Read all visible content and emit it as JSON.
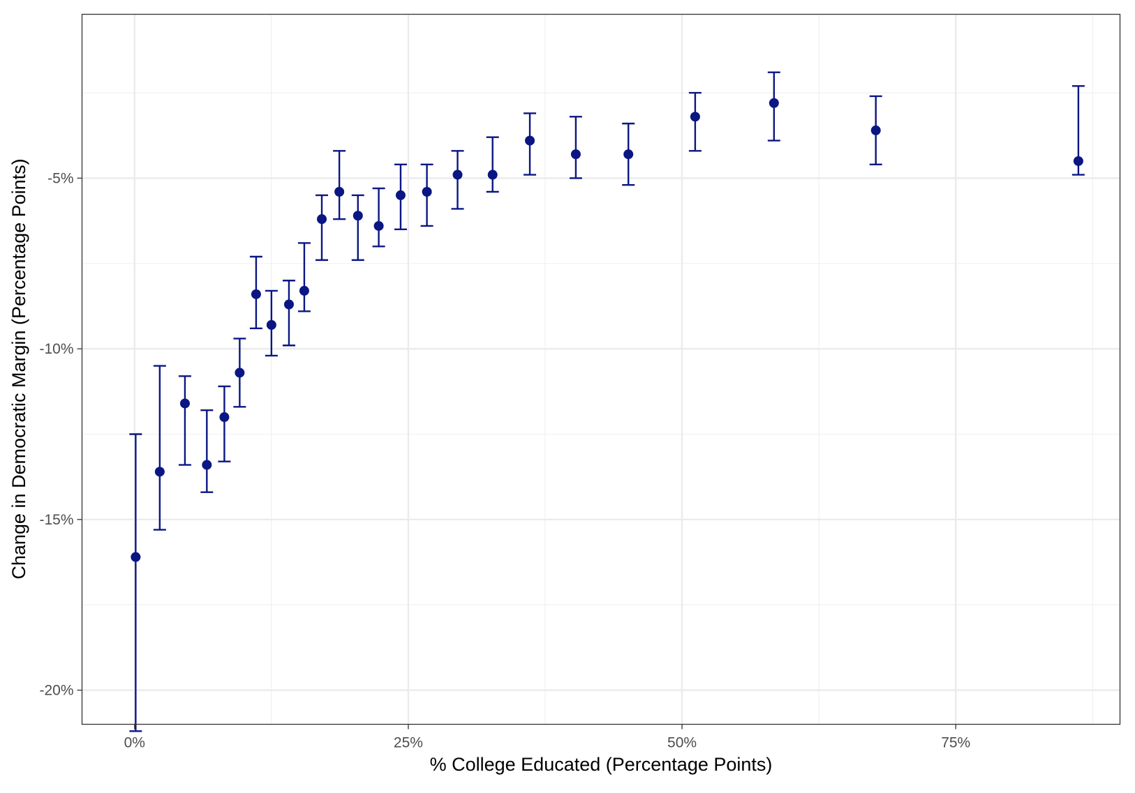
{
  "chart_data": {
    "type": "scatter",
    "title": "",
    "xlabel": "% College Educated (Percentage Points)",
    "ylabel": "Change in Democratic Margin (Percentage Points)",
    "xlim": [
      -0.048,
      0.9
    ],
    "ylim": [
      -21.0,
      -0.2
    ],
    "x_ticks": [
      {
        "value": 0.0,
        "label": "0%"
      },
      {
        "value": 0.25,
        "label": "25%"
      },
      {
        "value": 0.5,
        "label": "50%"
      },
      {
        "value": 0.75,
        "label": "75%"
      }
    ],
    "y_ticks": [
      {
        "value": -20,
        "label": "-20%"
      },
      {
        "value": -15,
        "label": "-15%"
      },
      {
        "value": -10,
        "label": "-10%"
      },
      {
        "value": -5,
        "label": "-5%"
      }
    ],
    "grid": true,
    "legend": "none",
    "point_color": "#0a1683",
    "points": [
      {
        "x": 0.001,
        "y": -16.1,
        "lo": -21.2,
        "hi": -12.5
      },
      {
        "x": 0.023,
        "y": -13.6,
        "lo": -15.3,
        "hi": -10.5
      },
      {
        "x": 0.046,
        "y": -11.6,
        "lo": -13.4,
        "hi": -10.8
      },
      {
        "x": 0.066,
        "y": -13.4,
        "lo": -14.2,
        "hi": -11.8
      },
      {
        "x": 0.082,
        "y": -12.0,
        "lo": -13.3,
        "hi": -11.1
      },
      {
        "x": 0.096,
        "y": -10.7,
        "lo": -11.7,
        "hi": -9.7
      },
      {
        "x": 0.111,
        "y": -8.4,
        "lo": -9.4,
        "hi": -7.3
      },
      {
        "x": 0.125,
        "y": -9.3,
        "lo": -10.2,
        "hi": -8.3
      },
      {
        "x": 0.141,
        "y": -8.7,
        "lo": -9.9,
        "hi": -8.0
      },
      {
        "x": 0.155,
        "y": -8.3,
        "lo": -8.9,
        "hi": -6.9
      },
      {
        "x": 0.171,
        "y": -6.2,
        "lo": -7.4,
        "hi": -5.5
      },
      {
        "x": 0.187,
        "y": -5.4,
        "lo": -6.2,
        "hi": -4.2
      },
      {
        "x": 0.204,
        "y": -6.1,
        "lo": -7.4,
        "hi": -5.5
      },
      {
        "x": 0.223,
        "y": -6.4,
        "lo": -7.0,
        "hi": -5.3
      },
      {
        "x": 0.243,
        "y": -5.5,
        "lo": -6.5,
        "hi": -4.6
      },
      {
        "x": 0.267,
        "y": -5.4,
        "lo": -6.4,
        "hi": -4.6
      },
      {
        "x": 0.295,
        "y": -4.9,
        "lo": -5.9,
        "hi": -4.2
      },
      {
        "x": 0.327,
        "y": -4.9,
        "lo": -5.4,
        "hi": -3.8
      },
      {
        "x": 0.361,
        "y": -3.9,
        "lo": -4.9,
        "hi": -3.1
      },
      {
        "x": 0.403,
        "y": -4.3,
        "lo": -5.0,
        "hi": -3.2
      },
      {
        "x": 0.451,
        "y": -4.3,
        "lo": -5.2,
        "hi": -3.4
      },
      {
        "x": 0.512,
        "y": -3.2,
        "lo": -4.2,
        "hi": -2.5
      },
      {
        "x": 0.584,
        "y": -2.8,
        "lo": -3.9,
        "hi": -1.9
      },
      {
        "x": 0.677,
        "y": -3.6,
        "lo": -4.6,
        "hi": -2.6
      },
      {
        "x": 0.862,
        "y": -4.5,
        "lo": -4.9,
        "hi": -2.3
      }
    ]
  }
}
